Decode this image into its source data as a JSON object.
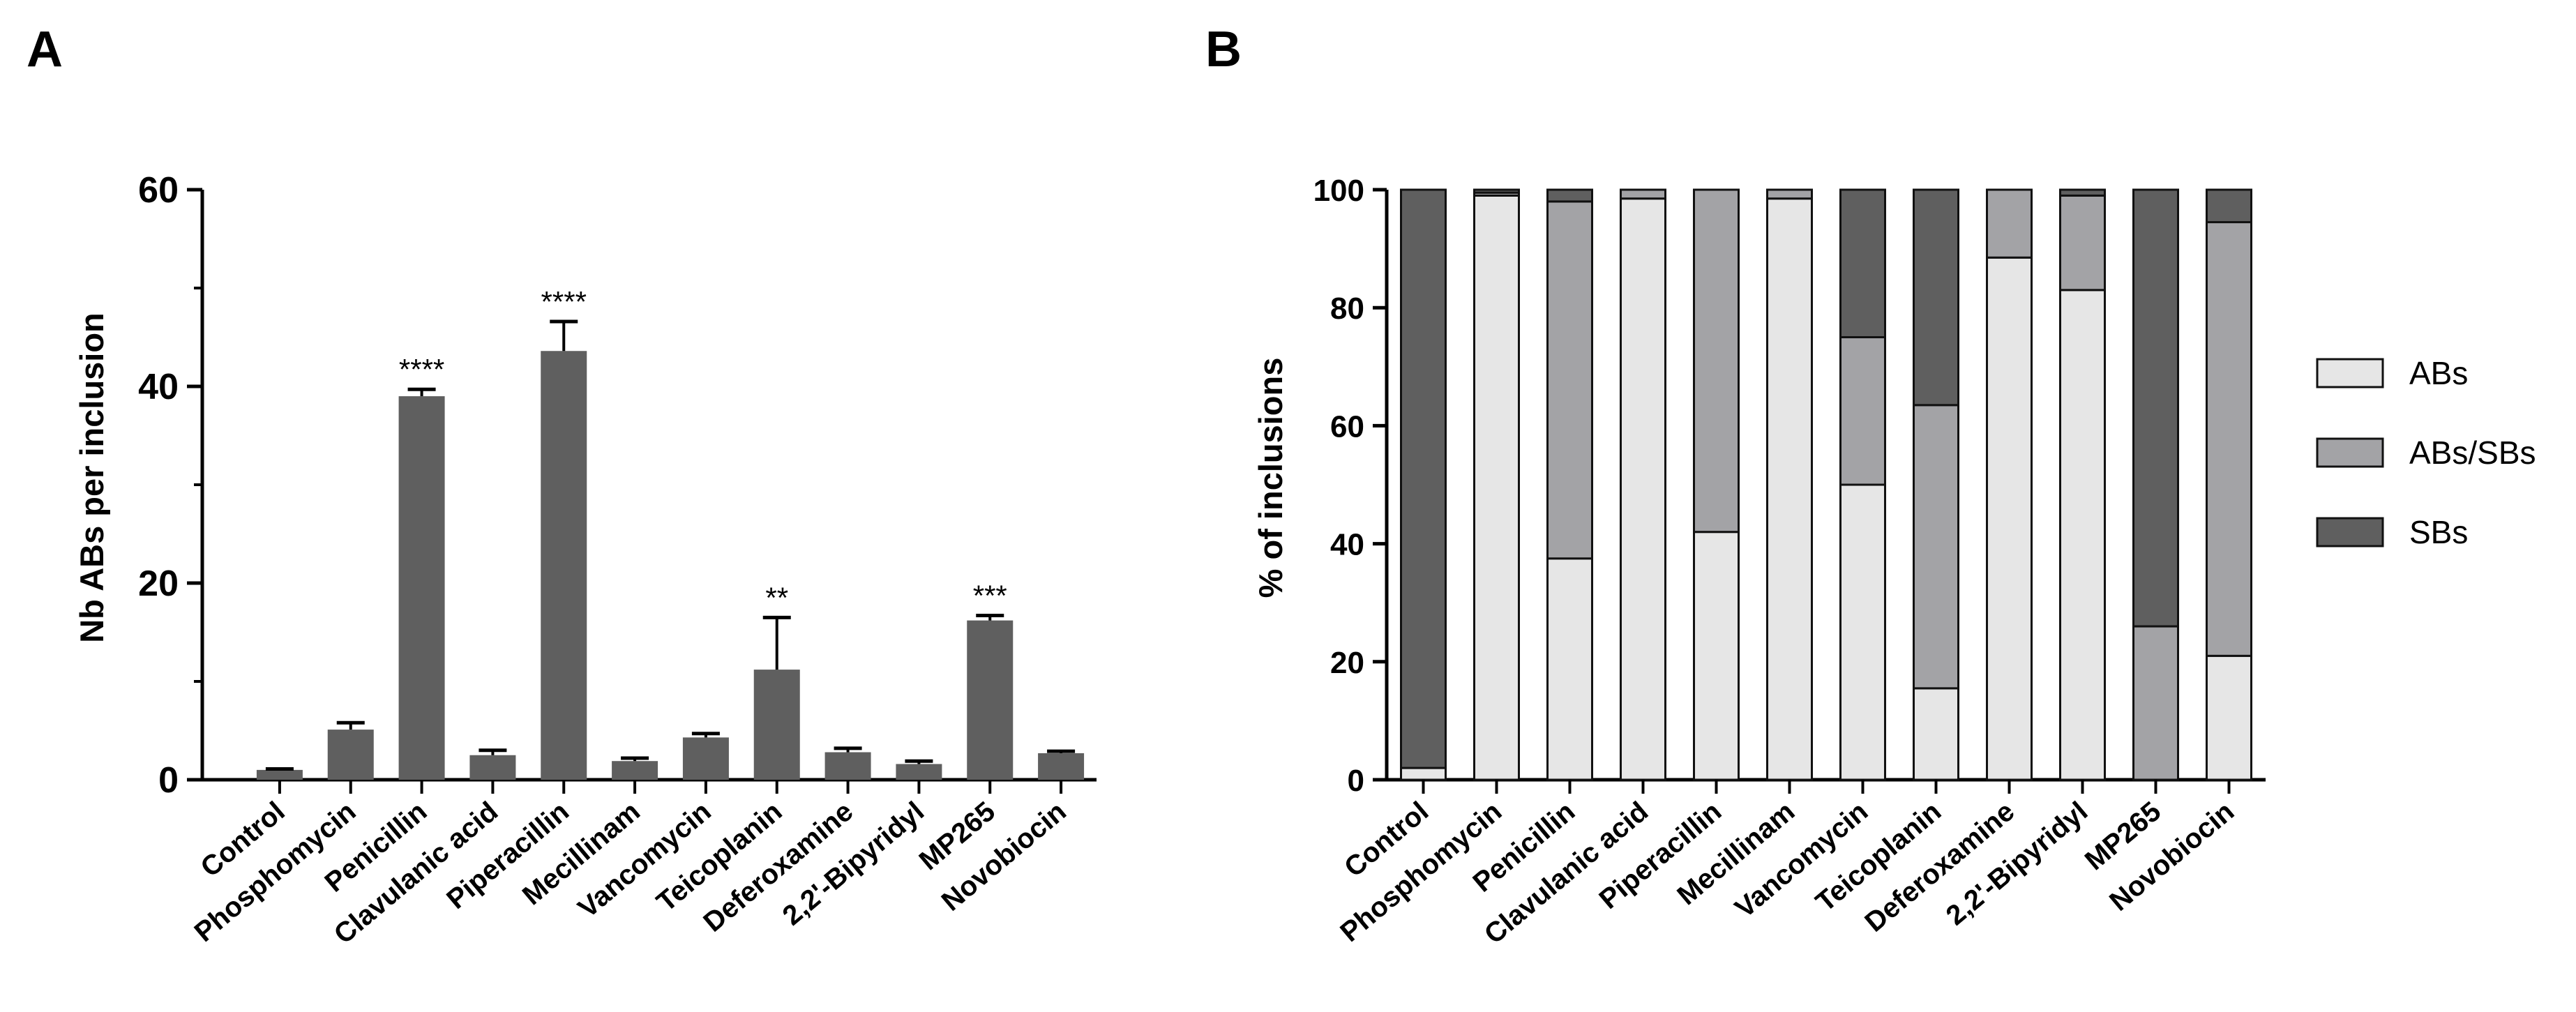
{
  "panels": {
    "a_label": "A",
    "b_label": "B"
  },
  "colors": {
    "bar_dark": "#5f5f5f",
    "abs": "#e6e6e6",
    "abs_sbs": "#a3a3a6",
    "sbs": "#5f5f5f",
    "axis": "#000000"
  },
  "chart_data": [
    {
      "id": "A",
      "type": "bar",
      "ylabel": "Nb ABs per inclusion",
      "xlabel": "",
      "ylim": [
        0,
        60
      ],
      "yticks": [
        0,
        20,
        40,
        60
      ],
      "ytick_labels": [
        "0",
        "20",
        "40",
        "60"
      ],
      "minor_ticks": [
        10,
        30,
        50
      ],
      "categories": [
        "Control",
        "Phosphomycin",
        "Penicillin",
        "Clavulanic acid",
        "Piperacillin",
        "Mecillinam",
        "Vancomycin",
        "Teicoplanin",
        "Deferoxamine",
        "2,2'-Bipyridyl",
        "MP265",
        "Novobiocin"
      ],
      "values": [
        1.0,
        5.1,
        39.0,
        2.5,
        43.6,
        1.9,
        4.3,
        11.2,
        2.8,
        1.6,
        16.2,
        2.7
      ],
      "errors": [
        0.1,
        0.7,
        0.7,
        0.5,
        3.0,
        0.3,
        0.4,
        5.3,
        0.4,
        0.3,
        0.5,
        0.2
      ],
      "significance": [
        "",
        "",
        "****",
        "",
        "****",
        "",
        "",
        "**",
        "",
        "",
        "***",
        ""
      ]
    },
    {
      "id": "B",
      "type": "bar",
      "stacked": true,
      "ylabel": "% of inclusions",
      "xlabel": "",
      "ylim": [
        0,
        100
      ],
      "yticks": [
        0,
        20,
        40,
        60,
        80,
        100
      ],
      "ytick_labels": [
        "0",
        "20",
        "40",
        "60",
        "80",
        "100"
      ],
      "categories": [
        "Control",
        "Phosphomycin",
        "Penicillin",
        "Clavulanic acid",
        "Piperacillin",
        "Mecillinam",
        "Vancomycin",
        "Teicoplanin",
        "Deferoxamine",
        "2,2'-Bipyridyl",
        "MP265",
        "Novobiocin"
      ],
      "series": [
        {
          "name": "ABs",
          "values": [
            2,
            99,
            37.5,
            98.5,
            42,
            98.5,
            50,
            15.5,
            88.5,
            83,
            0,
            21
          ]
        },
        {
          "name": "ABs/SBs",
          "values": [
            0,
            0.5,
            60.5,
            1.5,
            58,
            1.5,
            25,
            48,
            11.5,
            16,
            26,
            73.5
          ]
        },
        {
          "name": "SBs",
          "values": [
            98,
            0.5,
            2,
            0,
            0,
            0,
            25,
            36.5,
            0,
            1,
            74,
            5.5
          ]
        }
      ],
      "legend": [
        "ABs",
        "ABs/SBs",
        "SBs"
      ],
      "legend_position": "right"
    }
  ]
}
